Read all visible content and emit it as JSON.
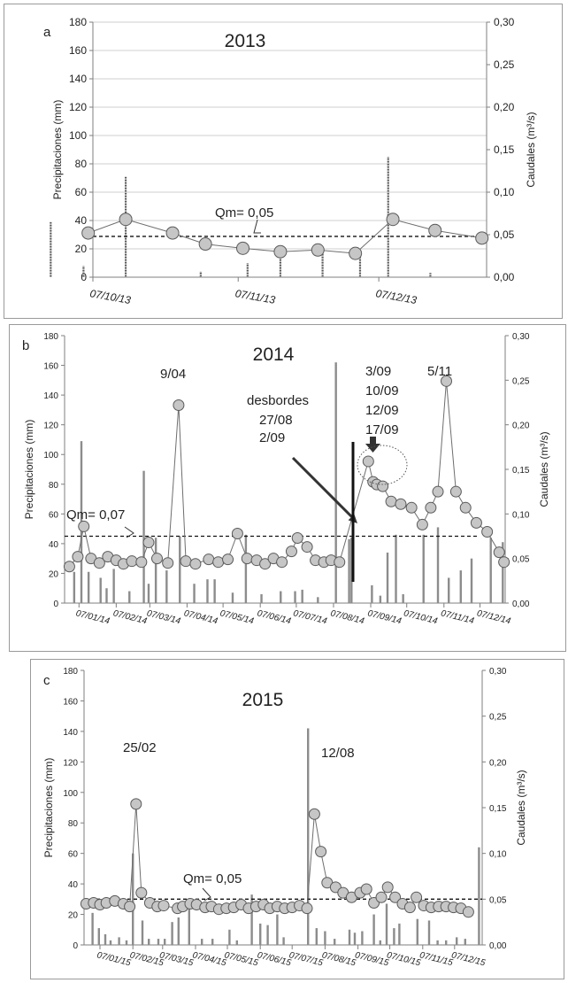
{
  "colors": {
    "axis": "#7f7f7f",
    "grid": "#cfcfcf",
    "bar": "#8c8c8c",
    "line": "#6e6e6e",
    "marker_fill": "#c6c6c6",
    "marker_stroke": "#5a5a5a",
    "mean_line": "#111111",
    "arrow": "#333333"
  },
  "chart_data": [
    {
      "type": "bar+line",
      "panel_letter": "a",
      "title": "2013",
      "ylabel_left": "Precipitaciones (mm)",
      "ylabel_right": "Caudales (m³/s)",
      "y_left_ticks": [
        "0",
        "20",
        "40",
        "60",
        "80",
        "100",
        "120",
        "140",
        "160",
        "180"
      ],
      "y_right_ticks": [
        "0,00",
        "0,05",
        "0,10",
        "0,15",
        "0,20",
        "0,25",
        "0,30"
      ],
      "ylim_left": [
        0,
        180
      ],
      "ylim_right": [
        0,
        0.3
      ],
      "grid": true,
      "xlim_days": [
        0,
        84
      ],
      "x_tick_labels": [
        "07/10/13",
        "07/11/13",
        "07/12/13"
      ],
      "x_tick_days": [
        0,
        31,
        61
      ],
      "precipitation_bars": [
        [
          -9,
          39
        ],
        [
          -2,
          8
        ],
        [
          7,
          71
        ],
        [
          23,
          4
        ],
        [
          33,
          10
        ],
        [
          40,
          17
        ],
        [
          49,
          21
        ],
        [
          57,
          18
        ],
        [
          63,
          85
        ],
        [
          72,
          3
        ]
      ],
      "discharge_series": [
        [
          -1,
          0.052
        ],
        [
          7,
          0.068
        ],
        [
          17,
          0.052
        ],
        [
          24,
          0.039
        ],
        [
          32,
          0.034
        ],
        [
          40,
          0.03
        ],
        [
          48,
          0.032
        ],
        [
          56,
          0.028
        ],
        [
          64,
          0.068
        ],
        [
          73,
          0.055
        ],
        [
          83,
          0.046
        ]
      ],
      "mean_discharge": 0.048,
      "mean_label": "Qm= 0,05",
      "annotations": []
    },
    {
      "type": "bar+line",
      "panel_letter": "b",
      "title": "2014",
      "ylabel_left": "Precipitaciones (mm)",
      "ylabel_right": "Caudales (m³/s)",
      "y_left_ticks": [
        "0",
        "20",
        "40",
        "60",
        "80",
        "100",
        "120",
        "140",
        "160",
        "180"
      ],
      "y_right_ticks": [
        "0,00",
        "0,05",
        "0,10",
        "0,15",
        "0,20",
        "0,25",
        "0,30"
      ],
      "ylim_left": [
        0,
        180
      ],
      "ylim_right": [
        0,
        0.3
      ],
      "grid": false,
      "xlim_days": [
        -12,
        355
      ],
      "x_tick_labels": [
        "07/01/14",
        "07/02/14",
        "07/03/14",
        "07/04/14",
        "07/05/14",
        "07/06/14",
        "07/07/14",
        "07/08/14",
        "07/09/14",
        "07/10/14",
        "07/11/14",
        "07/12/14"
      ],
      "x_tick_days": [
        0,
        31,
        59,
        90,
        120,
        151,
        181,
        212,
        243,
        273,
        304,
        334
      ],
      "precipitation_bars": [
        [
          -4,
          21
        ],
        [
          2,
          109
        ],
        [
          8,
          21
        ],
        [
          18,
          17
        ],
        [
          23,
          10
        ],
        [
          29,
          23
        ],
        [
          42,
          8
        ],
        [
          54,
          89
        ],
        [
          58,
          13
        ],
        [
          64,
          44
        ],
        [
          73,
          22
        ],
        [
          84,
          45
        ],
        [
          96,
          13
        ],
        [
          107,
          16
        ],
        [
          113,
          16
        ],
        [
          128,
          7
        ],
        [
          139,
          46
        ],
        [
          152,
          6
        ],
        [
          168,
          8
        ],
        [
          180,
          8
        ],
        [
          186,
          9
        ],
        [
          199,
          4
        ],
        [
          214,
          162
        ],
        [
          225,
          43
        ],
        [
          227,
          44
        ],
        [
          244,
          12
        ],
        [
          251,
          5
        ],
        [
          257,
          34
        ],
        [
          264,
          46
        ],
        [
          270,
          6
        ],
        [
          287,
          46
        ],
        [
          299,
          51
        ],
        [
          308,
          17
        ],
        [
          318,
          22
        ],
        [
          327,
          30
        ],
        [
          343,
          44
        ],
        [
          353,
          41
        ]
      ],
      "discharge_series": [
        [
          -8,
          0.041
        ],
        [
          -1,
          0.052
        ],
        [
          4,
          0.086
        ],
        [
          10,
          0.05
        ],
        [
          17,
          0.045
        ],
        [
          24,
          0.052
        ],
        [
          31,
          0.048
        ],
        [
          37,
          0.044
        ],
        [
          44,
          0.047
        ],
        [
          52,
          0.046
        ],
        [
          58,
          0.068
        ],
        [
          65,
          0.05
        ],
        [
          74,
          0.045
        ],
        [
          83,
          0.222
        ],
        [
          89,
          0.047
        ],
        [
          97,
          0.044
        ],
        [
          108,
          0.049
        ],
        [
          116,
          0.046
        ],
        [
          124,
          0.049
        ],
        [
          132,
          0.078
        ],
        [
          140,
          0.05
        ],
        [
          148,
          0.048
        ],
        [
          155,
          0.044
        ],
        [
          162,
          0.05
        ],
        [
          169,
          0.046
        ],
        [
          177,
          0.058
        ],
        [
          182,
          0.073
        ],
        [
          190,
          0.063
        ],
        [
          197,
          0.048
        ],
        [
          204,
          0.046
        ],
        [
          210,
          0.048
        ],
        [
          217,
          0.046
        ],
        [
          241,
          0.159
        ],
        [
          245,
          0.136
        ],
        [
          248,
          0.133
        ],
        [
          253,
          0.131
        ],
        [
          260,
          0.114
        ],
        [
          268,
          0.111
        ],
        [
          277,
          0.107
        ],
        [
          286,
          0.088
        ],
        [
          293,
          0.107
        ],
        [
          299,
          0.125
        ],
        [
          306,
          0.249
        ],
        [
          314,
          0.125
        ],
        [
          322,
          0.107
        ],
        [
          331,
          0.09
        ],
        [
          340,
          0.08
        ],
        [
          350,
          0.057
        ],
        [
          354,
          0.046
        ]
      ],
      "mean_discharge": 0.075,
      "mean_label": "Qm= 0,07",
      "annotations": [
        {
          "text": "9/04",
          "near_day": 84
        },
        {
          "text": "desbordes",
          "near_day": 205
        },
        {
          "text": "27/08",
          "near_day": 205
        },
        {
          "text": "2/09",
          "near_day": 205
        },
        {
          "text": "3/09",
          "near_day": 243
        },
        {
          "text": "10/09",
          "near_day": 243
        },
        {
          "text": "12/09",
          "near_day": 243
        },
        {
          "text": "17/09",
          "near_day": 243
        },
        {
          "text": "5/11",
          "near_day": 306
        }
      ]
    },
    {
      "type": "bar+line",
      "panel_letter": "c",
      "title": "2015",
      "ylabel_left": "Precipitaciones (mm)",
      "ylabel_right": "Caudales (m³/s)",
      "y_left_ticks": [
        "0",
        "20",
        "40",
        "60",
        "80",
        "100",
        "120",
        "140",
        "160",
        "180"
      ],
      "y_right_ticks": [
        "0,00",
        "0,05",
        "0,10",
        "0,15",
        "0,20",
        "0,25",
        "0,30"
      ],
      "ylim_left": [
        0,
        180
      ],
      "ylim_right": [
        0,
        0.3
      ],
      "grid": false,
      "xlim_days": [
        -15,
        360
      ],
      "x_tick_labels": [
        "07/01/15",
        "07/02/15",
        "07/03/15",
        "07/04/15",
        "07/05/15",
        "07/06/15",
        "07/07/15",
        "07/08/15",
        "07/09/15",
        "07/10/15",
        "07/11/15",
        "07/12/15"
      ],
      "x_tick_days": [
        0,
        31,
        59,
        90,
        120,
        151,
        181,
        212,
        243,
        273,
        304,
        334
      ],
      "precipitation_bars": [
        [
          -7,
          21
        ],
        [
          -1,
          11
        ],
        [
          5,
          7
        ],
        [
          10,
          3
        ],
        [
          18,
          5
        ],
        [
          25,
          3
        ],
        [
          31,
          60
        ],
        [
          40,
          16
        ],
        [
          46,
          4
        ],
        [
          55,
          4
        ],
        [
          61,
          4
        ],
        [
          68,
          15
        ],
        [
          74,
          18
        ],
        [
          84,
          25
        ],
        [
          96,
          4
        ],
        [
          106,
          4
        ],
        [
          122,
          10
        ],
        [
          129,
          3
        ],
        [
          143,
          33
        ],
        [
          151,
          14
        ],
        [
          158,
          13
        ],
        [
          167,
          20
        ],
        [
          173,
          5
        ],
        [
          196,
          142
        ],
        [
          204,
          11
        ],
        [
          212,
          9
        ],
        [
          221,
          4
        ],
        [
          235,
          10
        ],
        [
          240,
          8
        ],
        [
          247,
          9
        ],
        [
          258,
          20
        ],
        [
          264,
          3
        ],
        [
          270,
          27
        ],
        [
          277,
          11
        ],
        [
          282,
          14
        ],
        [
          299,
          17
        ],
        [
          310,
          16
        ],
        [
          318,
          3
        ],
        [
          326,
          3
        ],
        [
          336,
          5
        ],
        [
          344,
          4
        ],
        [
          357,
          64
        ]
      ],
      "discharge_series": [
        [
          -13,
          0.045
        ],
        [
          -6,
          0.046
        ],
        [
          0,
          0.044
        ],
        [
          6,
          0.046
        ],
        [
          14,
          0.048
        ],
        [
          22,
          0.045
        ],
        [
          28,
          0.042
        ],
        [
          34,
          0.154
        ],
        [
          39,
          0.057
        ],
        [
          47,
          0.046
        ],
        [
          54,
          0.042
        ],
        [
          60,
          0.043
        ],
        [
          73,
          0.04
        ],
        [
          78,
          0.042
        ],
        [
          85,
          0.045
        ],
        [
          91,
          0.044
        ],
        [
          99,
          0.041
        ],
        [
          105,
          0.042
        ],
        [
          112,
          0.039
        ],
        [
          119,
          0.04
        ],
        [
          126,
          0.041
        ],
        [
          133,
          0.044
        ],
        [
          140,
          0.04
        ],
        [
          147,
          0.042
        ],
        [
          154,
          0.044
        ],
        [
          160,
          0.04
        ],
        [
          167,
          0.042
        ],
        [
          174,
          0.04
        ],
        [
          181,
          0.041
        ],
        [
          188,
          0.043
        ],
        [
          195,
          0.04
        ],
        [
          202,
          0.143
        ],
        [
          208,
          0.102
        ],
        [
          214,
          0.068
        ],
        [
          222,
          0.063
        ],
        [
          229,
          0.057
        ],
        [
          237,
          0.052
        ],
        [
          245,
          0.057
        ],
        [
          251,
          0.061
        ],
        [
          258,
          0.046
        ],
        [
          265,
          0.052
        ],
        [
          271,
          0.063
        ],
        [
          278,
          0.052
        ],
        [
          285,
          0.045
        ],
        [
          292,
          0.041
        ],
        [
          298,
          0.052
        ],
        [
          305,
          0.043
        ],
        [
          312,
          0.041
        ],
        [
          319,
          0.042
        ],
        [
          326,
          0.042
        ],
        [
          333,
          0.041
        ],
        [
          340,
          0.04
        ],
        [
          347,
          0.036
        ]
      ],
      "mean_discharge": 0.05,
      "mean_label": "Qm= 0,05",
      "annotations": [
        {
          "text": "25/02",
          "near_day": 34
        },
        {
          "text": "12/08",
          "near_day": 202
        }
      ]
    }
  ]
}
